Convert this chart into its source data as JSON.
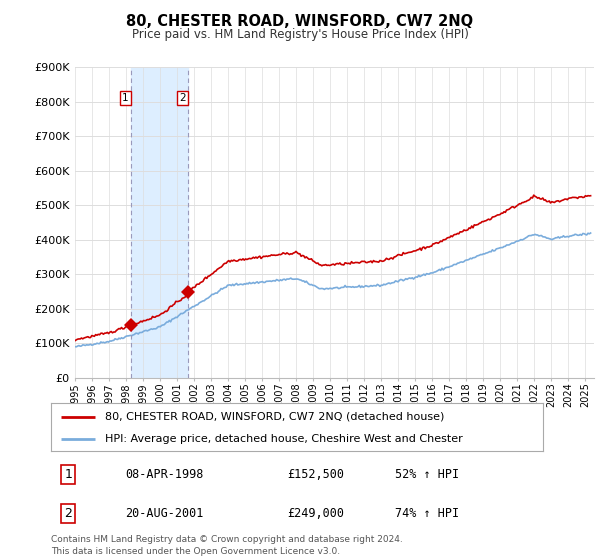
{
  "title": "80, CHESTER ROAD, WINSFORD, CW7 2NQ",
  "subtitle": "Price paid vs. HM Land Registry's House Price Index (HPI)",
  "legend_line1": "80, CHESTER ROAD, WINSFORD, CW7 2NQ (detached house)",
  "legend_line2": "HPI: Average price, detached house, Cheshire West and Chester",
  "footer": "Contains HM Land Registry data © Crown copyright and database right 2024.\nThis data is licensed under the Open Government Licence v3.0.",
  "sale1_date": 1998.27,
  "sale1_price": 152500,
  "sale1_label": "08-APR-1998",
  "sale1_pct": "52% ↑ HPI",
  "sale2_date": 2001.64,
  "sale2_price": 249000,
  "sale2_label": "20-AUG-2001",
  "sale2_pct": "74% ↑ HPI",
  "red_color": "#cc0000",
  "blue_color": "#7aacdc",
  "shade_color": "#ddeeff",
  "vline_color": "#aaaacc",
  "grid_color": "#dddddd",
  "bg_color": "#ffffff",
  "ylim": [
    0,
    900000
  ],
  "xlim": [
    1995.0,
    2025.5
  ]
}
